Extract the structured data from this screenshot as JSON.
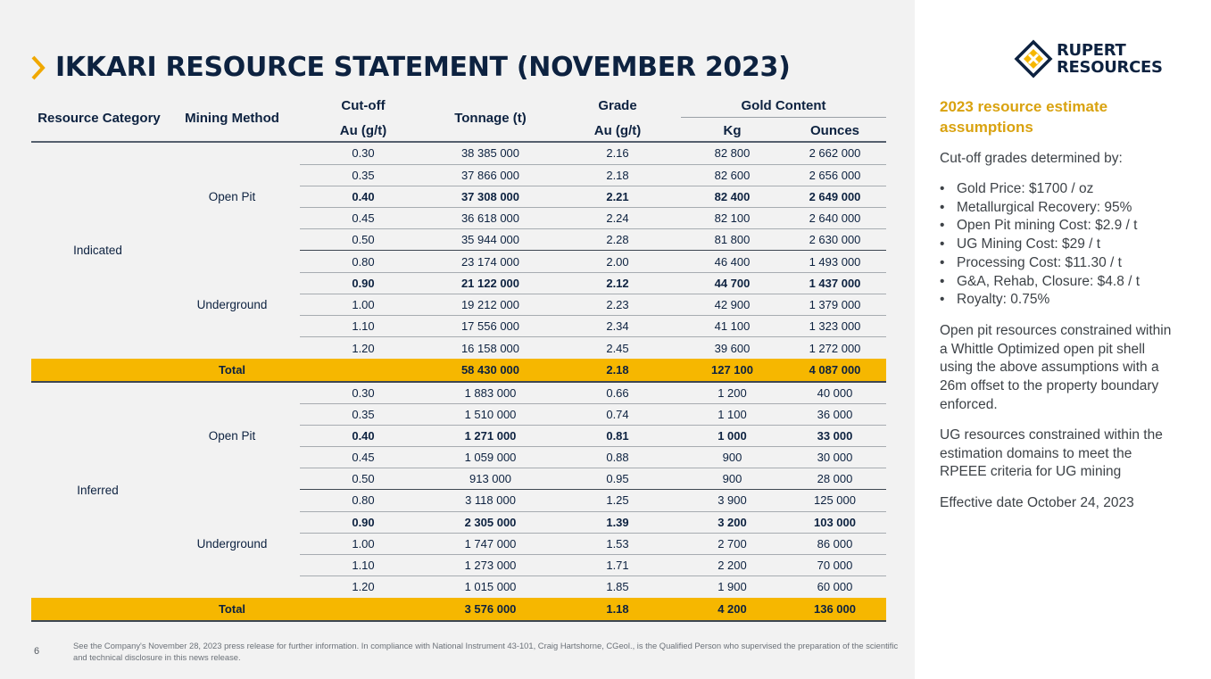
{
  "title": "IKKARI RESOURCE STATEMENT (NOVEMBER 2023)",
  "headers": {
    "category": "Resource Category",
    "method": "Mining Method",
    "cutoff": "Cut-off",
    "cutoff_unit": "Au (g/t)",
    "tonnage": "Tonnage (t)",
    "grade": "Grade",
    "grade_unit": "Au (g/t)",
    "gold": "Gold  Content",
    "kg": "Kg",
    "oz": "Ounces"
  },
  "groups": [
    {
      "category": "Indicated",
      "methods": [
        {
          "name": "Open Pit",
          "rows": [
            {
              "cutoff": "0.30",
              "tonnage": "38 385 000",
              "grade": "2.16",
              "kg": "82 800",
              "oz": "2 662 000"
            },
            {
              "cutoff": "0.35",
              "tonnage": "37 866 000",
              "grade": "2.18",
              "kg": "82 600",
              "oz": "2 656 000"
            },
            {
              "cutoff": "0.40",
              "tonnage": "37 308 000",
              "grade": "2.21",
              "kg": "82 400",
              "oz": "2 649 000"
            },
            {
              "cutoff": "0.45",
              "tonnage": "36 618 000",
              "grade": "2.24",
              "kg": "82 100",
              "oz": "2 640 000"
            },
            {
              "cutoff": "0.50",
              "tonnage": "35 944 000",
              "grade": "2.28",
              "kg": "81 800",
              "oz": "2 630 000"
            }
          ]
        },
        {
          "name": "Underground",
          "rows": [
            {
              "cutoff": "0.80",
              "tonnage": "23 174 000",
              "grade": "2.00",
              "kg": "46 400",
              "oz": "1 493 000"
            },
            {
              "cutoff": "0.90",
              "tonnage": "21 122 000",
              "grade": "2.12",
              "kg": "44 700",
              "oz": "1 437 000"
            },
            {
              "cutoff": "1.00",
              "tonnage": "19 212 000",
              "grade": "2.23",
              "kg": "42 900",
              "oz": "1 379 000"
            },
            {
              "cutoff": "1.10",
              "tonnage": "17 556 000",
              "grade": "2.34",
              "kg": "41 100",
              "oz": "1 323 000"
            },
            {
              "cutoff": "1.20",
              "tonnage": "16 158 000",
              "grade": "2.45",
              "kg": "39 600",
              "oz": "1 272 000"
            }
          ]
        }
      ],
      "total": {
        "label": "Total",
        "tonnage": "58 430 000",
        "grade": "2.18",
        "kg": "127 100",
        "oz": "4 087 000"
      }
    },
    {
      "category": "Inferred",
      "methods": [
        {
          "name": "Open Pit",
          "rows": [
            {
              "cutoff": "0.30",
              "tonnage": "1 883 000",
              "grade": "0.66",
              "kg": "1 200",
              "oz": "40 000"
            },
            {
              "cutoff": "0.35",
              "tonnage": "1 510 000",
              "grade": "0.74",
              "kg": "1 100",
              "oz": "36 000"
            },
            {
              "cutoff": "0.40",
              "tonnage": "1 271 000",
              "grade": "0.81",
              "kg": "1 000",
              "oz": "33 000"
            },
            {
              "cutoff": "0.45",
              "tonnage": "1 059 000",
              "grade": "0.88",
              "kg": "900",
              "oz": "30 000"
            },
            {
              "cutoff": "0.50",
              "tonnage": "913 000",
              "grade": "0.95",
              "kg": "900",
              "oz": "28 000"
            }
          ]
        },
        {
          "name": "Underground",
          "rows": [
            {
              "cutoff": "0.80",
              "tonnage": "3 118 000",
              "grade": "1.25",
              "kg": "3 900",
              "oz": "125 000"
            },
            {
              "cutoff": "0.90",
              "tonnage": "2 305 000",
              "grade": "1.39",
              "kg": "3 200",
              "oz": "103 000"
            },
            {
              "cutoff": "1.00",
              "tonnage": "1 747 000",
              "grade": "1.53",
              "kg": "2 700",
              "oz": "86 000"
            },
            {
              "cutoff": "1.10",
              "tonnage": "1 273 000",
              "grade": "1.71",
              "kg": "2 200",
              "oz": "70 000"
            },
            {
              "cutoff": "1.20",
              "tonnage": "1 015 000",
              "grade": "1.85",
              "kg": "1 900",
              "oz": "60 000"
            }
          ]
        }
      ],
      "total": {
        "label": "Total",
        "tonnage": "3 576 000",
        "grade": "1.18",
        "kg": "4 200",
        "oz": "136 000"
      }
    }
  ],
  "footer": {
    "page": "6",
    "note": "See the Company's November 28, 2023 press release for further information. In compliance with National Instrument 43-101, Craig Hartshorne, CGeol., is the Qualified Person who supervised the preparation of the scientific and technical disclosure in this news release."
  },
  "logo": {
    "line1": "RUPERT",
    "line2": "RESOURCES"
  },
  "sidebar": {
    "title": "2023 resource estimate assumptions",
    "intro": "Cut-off grades determined by:",
    "bullets": [
      "Gold Price: $1700 / oz",
      "Metallurgical Recovery: 95%",
      "Open Pit mining Cost: $2.9 / t",
      "UG Mining Cost: $29 / t",
      "Processing Cost: $11.30 / t",
      "G&A, Rehab, Closure: $4.8 / t",
      "Royalty: 0.75%"
    ],
    "para1": "Open pit resources constrained within a Whittle Optimized open pit shell using the above assumptions with a 26m offset to the property boundary enforced.",
    "para2": "UG resources constrained within the estimation domains to meet the RPEEE criteria for UG mining",
    "effective": "Effective date October 24, 2023"
  },
  "colors": {
    "accent": "#f6b700",
    "navy": "#0d2240",
    "gold_text": "#d9a20f"
  },
  "icons": {
    "title_marker": "chevron-right-icon",
    "logo": "rupert-diamond-logo-icon"
  }
}
